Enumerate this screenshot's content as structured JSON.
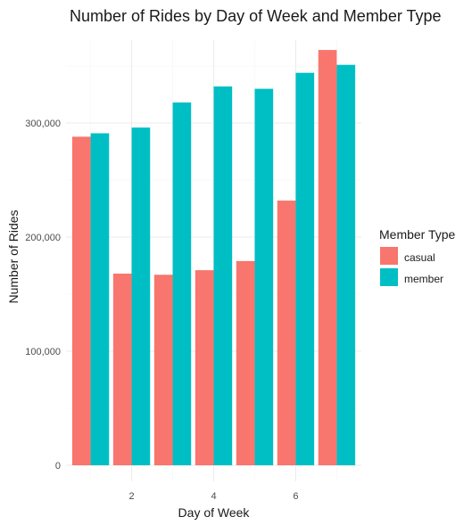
{
  "chart_data": {
    "type": "bar",
    "title": "Number of Rides by Day of Week and Member Type",
    "xlabel": "Day of Week",
    "ylabel": "Number of Rides",
    "categories": [
      1,
      2,
      3,
      4,
      5,
      6,
      7
    ],
    "x_tick_labels": [
      "2",
      "4",
      "6"
    ],
    "x_tick_values": [
      2,
      4,
      6
    ],
    "y_tick_labels": [
      "0",
      "100,000",
      "200,000",
      "300,000"
    ],
    "y_tick_values": [
      0,
      100000,
      200000,
      300000
    ],
    "ylim": [
      0,
      365000
    ],
    "xlim": [
      0.4,
      7.6
    ],
    "grid": true,
    "series": [
      {
        "name": "casual",
        "color": "#F8766D",
        "values": [
          288000,
          168000,
          167000,
          171000,
          179000,
          232000,
          364000
        ]
      },
      {
        "name": "member",
        "color": "#00BFC4",
        "values": [
          291000,
          296000,
          318000,
          332000,
          330000,
          344000,
          351000
        ]
      }
    ],
    "legend": {
      "title": "Member Type",
      "position": "right",
      "entries": [
        "casual",
        "member"
      ]
    }
  }
}
